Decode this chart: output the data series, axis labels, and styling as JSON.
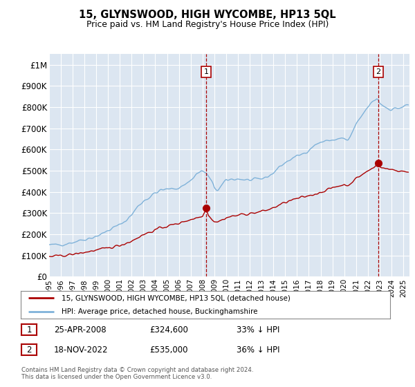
{
  "title": "15, GLYNSWOOD, HIGH WYCOMBE, HP13 5QL",
  "subtitle": "Price paid vs. HM Land Registry's House Price Index (HPI)",
  "legend_line1": "15, GLYNSWOOD, HIGH WYCOMBE, HP13 5QL (detached house)",
  "legend_line2": "HPI: Average price, detached house, Buckinghamshire",
  "footnote": "Contains HM Land Registry data © Crown copyright and database right 2024.\nThis data is licensed under the Open Government Licence v3.0.",
  "annotation1_label": "1",
  "annotation1_date": "25-APR-2008",
  "annotation1_price": "£324,600",
  "annotation1_hpi": "33% ↓ HPI",
  "annotation2_label": "2",
  "annotation2_date": "18-NOV-2022",
  "annotation2_price": "£535,000",
  "annotation2_hpi": "36% ↓ HPI",
  "red_color": "#aa0000",
  "blue_color": "#7fb2d9",
  "background_color": "#dce6f1",
  "ylim": [
    0,
    1050000
  ],
  "yticks": [
    0,
    100000,
    200000,
    300000,
    400000,
    500000,
    600000,
    700000,
    800000,
    900000,
    1000000
  ],
  "ytick_labels": [
    "£0",
    "£100K",
    "£200K",
    "£300K",
    "£400K",
    "£500K",
    "£600K",
    "£700K",
    "£800K",
    "£900K",
    "£1M"
  ],
  "marker1_x": 2008.31,
  "marker1_y": 324600,
  "marker2_x": 2022.88,
  "marker2_y": 535000,
  "xmin": 1995.0,
  "xmax": 2025.5,
  "xtick_years": [
    1995,
    1996,
    1997,
    1998,
    1999,
    2000,
    2001,
    2002,
    2003,
    2004,
    2005,
    2006,
    2007,
    2008,
    2009,
    2010,
    2011,
    2012,
    2013,
    2014,
    2015,
    2016,
    2017,
    2018,
    2019,
    2020,
    2021,
    2022,
    2023,
    2024,
    2025
  ]
}
